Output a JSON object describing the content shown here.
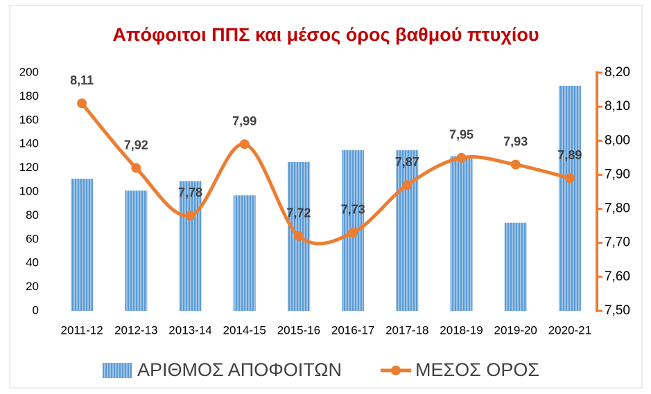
{
  "chart_data": {
    "type": "bar-line",
    "title": "Απόφοιτοι ΠΠΣ και μέσος όρος βαθμού πτυχίου",
    "categories": [
      "2011-12",
      "2012-13",
      "2013-14",
      "2014-15",
      "2015-16",
      "2016-17",
      "2017-18",
      "2018-19",
      "2019-20",
      "2020-21"
    ],
    "series": [
      {
        "name": "ΑΡΙΘΜΟΣ ΑΠΟΦΟΙΤΩΝ",
        "type": "bar",
        "color": "#5b9bd5",
        "values": [
          111,
          101,
          109,
          97,
          125,
          135,
          135,
          130,
          74,
          189
        ]
      },
      {
        "name": "ΜΕΣΟΣ ΟΡΟΣ",
        "type": "line",
        "axis": "y2",
        "color": "#ed7d31",
        "smooth": true,
        "values": [
          8.11,
          7.92,
          7.78,
          7.99,
          7.72,
          7.73,
          7.87,
          7.95,
          7.93,
          7.89
        ],
        "value_labels": [
          "8,11",
          "7,92",
          "7,78",
          "7,99",
          "7,72",
          "7,73",
          "7,87",
          "7,95",
          "7,93",
          "7,89"
        ]
      }
    ],
    "ylim": [
      0,
      200
    ],
    "yticks": [
      0,
      20,
      40,
      60,
      80,
      100,
      120,
      140,
      160,
      180,
      200
    ],
    "y2lim": [
      7.5,
      8.2
    ],
    "y2ticks": [
      {
        "value": 7.5,
        "label": "7,50"
      },
      {
        "value": 7.6,
        "label": "7,60"
      },
      {
        "value": 7.7,
        "label": "7,70"
      },
      {
        "value": 7.8,
        "label": "7,80"
      },
      {
        "value": 7.9,
        "label": "7,90"
      },
      {
        "value": 8.0,
        "label": "8,00"
      },
      {
        "value": 8.1,
        "label": "8,10"
      },
      {
        "value": 8.2,
        "label": "8,20"
      }
    ],
    "legend": "bottom",
    "grid": false
  }
}
